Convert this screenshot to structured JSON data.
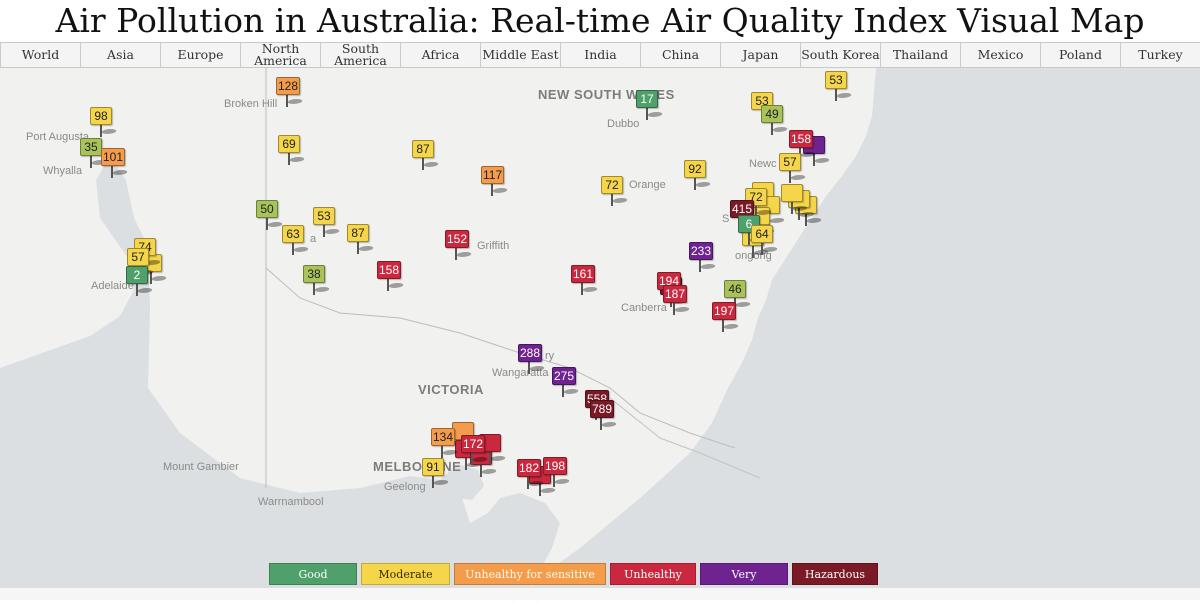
{
  "title": "Air Pollution in Australia: Real-time Air Quality Index Visual Map",
  "tabs": [
    "World",
    "Asia",
    "Europe",
    "North America",
    "South America",
    "Africa",
    "Middle East",
    "India",
    "China",
    "Japan",
    "South Korea",
    "Thailand",
    "Mexico",
    "Poland",
    "Turkey"
  ],
  "places": {
    "new_south_wales": "NEW SOUTH WALES",
    "victoria": "VICTORIA",
    "port_augusta": "Port Augusta",
    "whyalla": "Whyalla",
    "adelaide": "Adelaide",
    "broken_hill": "Broken Hill",
    "dubbo": "Dubbo",
    "orange": "Orange",
    "newcastle": "Newc",
    "sydney": "S",
    "wollongong": "ongong",
    "griffith": "Griffith",
    "canberra": "Canberra",
    "wangaratta": "Wangaratta",
    "mildura": "a",
    "albury": "ry",
    "mount_gambier": "Mount Gambier",
    "melbourne": "MELBOURNE",
    "geelong": "Geelong",
    "warrnambool": "Warrnambool"
  },
  "stations": [
    {
      "aqi": "128"
    },
    {
      "aqi": "98"
    },
    {
      "aqi": "35"
    },
    {
      "aqi": "101"
    },
    {
      "aqi": "69"
    },
    {
      "aqi": "87"
    },
    {
      "aqi": "117"
    },
    {
      "aqi": "50"
    },
    {
      "aqi": "53"
    },
    {
      "aqi": "63"
    },
    {
      "aqi": "87"
    },
    {
      "aqi": "152"
    },
    {
      "aqi": "38"
    },
    {
      "aqi": "158"
    },
    {
      "aqi": "74"
    },
    {
      "aqi": "57"
    },
    {
      "aqi": "2"
    },
    {
      "aqi": "17"
    },
    {
      "aqi": "72"
    },
    {
      "aqi": "92"
    },
    {
      "aqi": "53"
    },
    {
      "aqi": "53"
    },
    {
      "aqi": "49"
    },
    {
      "aqi": "158"
    },
    {
      "aqi": "57"
    },
    {
      "aqi": "72"
    },
    {
      "aqi": "415"
    },
    {
      "aqi": "6"
    },
    {
      "aqi": "64"
    },
    {
      "aqi": "233"
    },
    {
      "aqi": "161"
    },
    {
      "aqi": "194"
    },
    {
      "aqi": "187"
    },
    {
      "aqi": "46"
    },
    {
      "aqi": "197"
    },
    {
      "aqi": "288"
    },
    {
      "aqi": "275"
    },
    {
      "aqi": "558"
    },
    {
      "aqi": "789"
    },
    {
      "aqi": "134"
    },
    {
      "aqi": "172"
    },
    {
      "aqi": "91"
    },
    {
      "aqi": "182"
    },
    {
      "aqi": "198"
    }
  ],
  "legend": [
    {
      "label": "Good",
      "color": "#4fa06a"
    },
    {
      "label": "Moderate",
      "color": "#f5d54a"
    },
    {
      "label": "Unhealthy for sensitive groups",
      "color": "#f39c4c"
    },
    {
      "label": "Unhealthy",
      "color": "#c9283e"
    },
    {
      "label": "Very Unhealthy",
      "color": "#6f2391"
    },
    {
      "label": "Hazardous",
      "color": "#7a1a26"
    }
  ]
}
